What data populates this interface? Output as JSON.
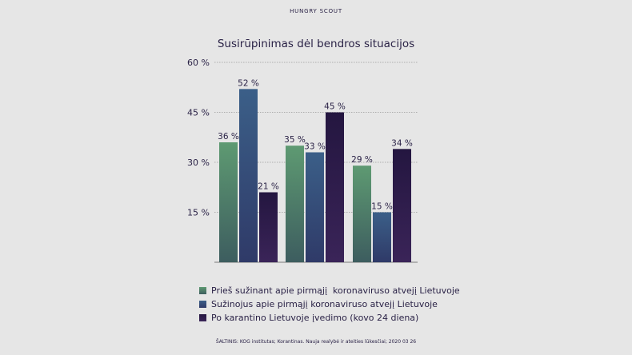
{
  "brand": "HUNGRY SCOUT",
  "source": "ŠALTINIS: KOG institutas; Korantinas. Nauja realybė ir ateities lūkesčiai; 2020 03 26",
  "colors": {
    "background": "#e6e6e6",
    "text": "#2a2246",
    "grid": "#9a9a9a"
  },
  "chart_data": {
    "type": "bar",
    "title": "Susirūpinimas dėl bendros situacijos",
    "categories": [
      "",
      "",
      ""
    ],
    "yticks": [
      15,
      30,
      45,
      60
    ],
    "ytick_labels": [
      "15 %",
      "30 %",
      "45 %",
      "60 %"
    ],
    "ylim": [
      0,
      60
    ],
    "grid": true,
    "legend_position": "bottom",
    "series": [
      {
        "name": "Prieš sužinant apie pirmąjį  koronaviruso atvejį Lietuvoje",
        "values": [
          36,
          35,
          29
        ],
        "labels": [
          "36 %",
          "35 %",
          "29 %"
        ],
        "color_top": "#5e9a72",
        "color_bottom": "#3d5d5f"
      },
      {
        "name": "Sužinojus apie pirmąjį koronaviruso atvejį Lietuvoje",
        "values": [
          52,
          33,
          15
        ],
        "labels": [
          "52 %",
          "33 %",
          "15 %"
        ],
        "color_top": "#3b5f88",
        "color_bottom": "#2f3a68"
      },
      {
        "name": "Po karantino Lietuvoje įvedimo (kovo 24 diena)",
        "values": [
          21,
          45,
          34
        ],
        "labels": [
          "21 %",
          "45 %",
          "34 %"
        ],
        "color_top": "#241640",
        "color_bottom": "#3a2458"
      }
    ]
  }
}
